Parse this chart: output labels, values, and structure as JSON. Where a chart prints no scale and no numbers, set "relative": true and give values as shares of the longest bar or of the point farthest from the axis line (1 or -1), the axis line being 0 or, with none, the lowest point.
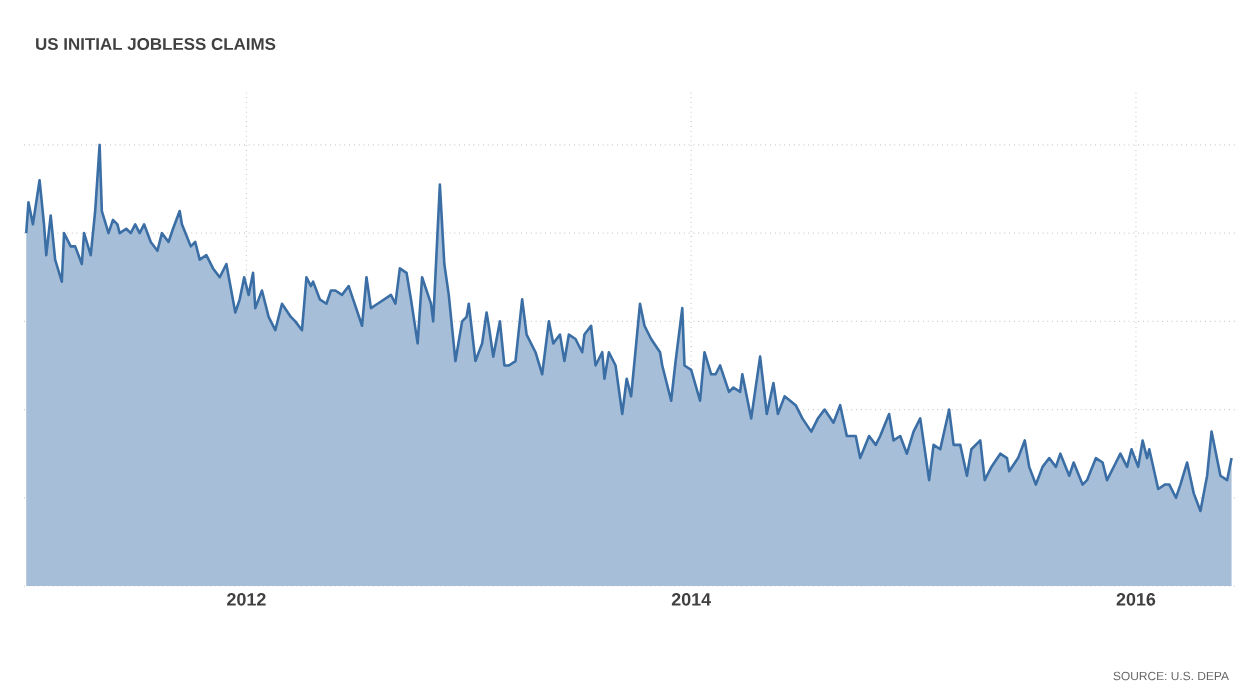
{
  "chart_data": {
    "type": "area",
    "title": "US INITIAL JOBLESS CLAIMS",
    "annotations": [
      "SOURCE: U.S. DEPA"
    ],
    "color": "#3a6ea5",
    "relative": true,
    "grid": true,
    "xlim": [
      2011.0,
      2016.45
    ],
    "xticks": [
      2012,
      2014,
      2016
    ],
    "x": [
      2011.01,
      2011.02,
      2011.04,
      2011.07,
      2011.09,
      2011.1,
      2011.12,
      2011.14,
      2011.17,
      2011.18,
      2011.21,
      2011.23,
      2011.26,
      2011.27,
      2011.3,
      2011.32,
      2011.34,
      2011.35,
      2011.38,
      2011.4,
      2011.42,
      2011.43,
      2011.46,
      2011.48,
      2011.5,
      2011.52,
      2011.54,
      2011.57,
      2011.6,
      2011.62,
      2011.65,
      2011.67,
      2011.7,
      2011.71,
      2011.75,
      2011.77,
      2011.79,
      2011.82,
      2011.85,
      2011.88,
      2011.91,
      2011.95,
      2011.97,
      2011.99,
      2012.01,
      2012.03,
      2012.04,
      2012.07,
      2012.1,
      2012.13,
      2012.16,
      2012.2,
      2012.22,
      2012.25,
      2012.27,
      2012.29,
      2012.3,
      2012.33,
      2012.36,
      2012.38,
      2012.4,
      2012.43,
      2012.46,
      2012.48,
      2012.52,
      2012.54,
      2012.56,
      2012.59,
      2012.62,
      2012.65,
      2012.67,
      2012.69,
      2012.72,
      2012.74,
      2012.77,
      2012.79,
      2012.83,
      2012.84,
      2012.87,
      2012.89,
      2012.91,
      2012.94,
      2012.97,
      2012.99,
      2013.0,
      2013.03,
      2013.06,
      2013.08,
      2013.09,
      2013.11,
      2013.14,
      2013.16,
      2013.18,
      2013.21,
      2013.24,
      2013.26,
      2013.3,
      2013.33,
      2013.36,
      2013.38,
      2013.41,
      2013.43,
      2013.45,
      2013.48,
      2013.51,
      2013.52,
      2013.55,
      2013.57,
      2013.6,
      2013.61,
      2013.63,
      2013.66,
      2013.69,
      2013.71,
      2013.73,
      2013.77,
      2013.79,
      2013.82,
      2013.86,
      2013.87,
      2013.91,
      2013.93,
      2013.96,
      2013.97,
      2014.0,
      2014.04,
      2014.06,
      2014.09,
      2014.11,
      2014.13,
      2014.17,
      2014.19,
      2014.22,
      2014.23,
      2014.27,
      2014.31,
      2014.34,
      2014.37,
      2014.39,
      2014.42,
      2014.47,
      2014.5,
      2014.54,
      2014.57,
      2014.6,
      2014.64,
      2014.67,
      2014.7,
      2014.74,
      2014.76,
      2014.8,
      2014.83,
      2014.85,
      2014.89,
      2014.91,
      2014.94,
      2014.97,
      2015.0,
      2015.03,
      2015.07,
      2015.09,
      2015.12,
      2015.16,
      2015.18,
      2015.21,
      2015.24,
      2015.26,
      2015.3,
      2015.32,
      2015.35,
      2015.39,
      2015.42,
      2015.43,
      2015.47,
      2015.5,
      2015.52,
      2015.55,
      2015.58,
      2015.61,
      2015.64,
      2015.66,
      2015.7,
      2015.72,
      2015.76,
      2015.78,
      2015.82,
      2015.85,
      2015.87,
      2015.91,
      2015.93,
      2015.96,
      2015.98,
      2016.01,
      2016.03,
      2016.05,
      2016.06,
      2016.1,
      2016.13,
      2016.15,
      2016.18,
      2016.2,
      2016.23,
      2016.26,
      2016.29,
      2016.32,
      2016.34,
      2016.38,
      2016.41,
      2016.43
    ],
    "values": [
      0.8,
      0.87,
      0.82,
      0.92,
      0.82,
      0.75,
      0.84,
      0.74,
      0.69,
      0.8,
      0.77,
      0.77,
      0.73,
      0.8,
      0.75,
      0.85,
      1.0,
      0.85,
      0.8,
      0.83,
      0.82,
      0.8,
      0.81,
      0.8,
      0.82,
      0.8,
      0.82,
      0.78,
      0.76,
      0.8,
      0.78,
      0.81,
      0.85,
      0.82,
      0.77,
      0.78,
      0.74,
      0.75,
      0.72,
      0.7,
      0.73,
      0.62,
      0.65,
      0.7,
      0.66,
      0.71,
      0.63,
      0.67,
      0.61,
      0.58,
      0.64,
      0.61,
      0.6,
      0.58,
      0.7,
      0.68,
      0.69,
      0.65,
      0.64,
      0.67,
      0.67,
      0.66,
      0.68,
      0.65,
      0.59,
      0.7,
      0.63,
      0.64,
      0.65,
      0.66,
      0.64,
      0.72,
      0.71,
      0.65,
      0.55,
      0.7,
      0.64,
      0.6,
      0.91,
      0.73,
      0.66,
      0.51,
      0.6,
      0.61,
      0.64,
      0.51,
      0.55,
      0.62,
      0.59,
      0.52,
      0.6,
      0.5,
      0.5,
      0.51,
      0.65,
      0.57,
      0.53,
      0.48,
      0.6,
      0.55,
      0.57,
      0.51,
      0.57,
      0.56,
      0.53,
      0.57,
      0.59,
      0.5,
      0.53,
      0.47,
      0.53,
      0.5,
      0.39,
      0.47,
      0.43,
      0.64,
      0.59,
      0.56,
      0.53,
      0.5,
      0.42,
      0.51,
      0.63,
      0.5,
      0.49,
      0.42,
      0.53,
      0.48,
      0.48,
      0.5,
      0.44,
      0.45,
      0.44,
      0.48,
      0.38,
      0.52,
      0.39,
      0.46,
      0.39,
      0.43,
      0.41,
      0.38,
      0.35,
      0.38,
      0.4,
      0.37,
      0.41,
      0.34,
      0.34,
      0.29,
      0.34,
      0.32,
      0.34,
      0.39,
      0.33,
      0.34,
      0.3,
      0.35,
      0.38,
      0.24,
      0.32,
      0.31,
      0.4,
      0.32,
      0.32,
      0.25,
      0.31,
      0.33,
      0.24,
      0.27,
      0.3,
      0.29,
      0.26,
      0.29,
      0.33,
      0.27,
      0.23,
      0.27,
      0.29,
      0.27,
      0.3,
      0.25,
      0.28,
      0.23,
      0.24,
      0.29,
      0.28,
      0.24,
      0.28,
      0.3,
      0.27,
      0.31,
      0.27,
      0.33,
      0.29,
      0.31,
      0.22,
      0.23,
      0.23,
      0.2,
      0.23,
      0.28,
      0.21,
      0.17,
      0.25,
      0.35,
      0.25,
      0.24,
      0.29
    ]
  }
}
